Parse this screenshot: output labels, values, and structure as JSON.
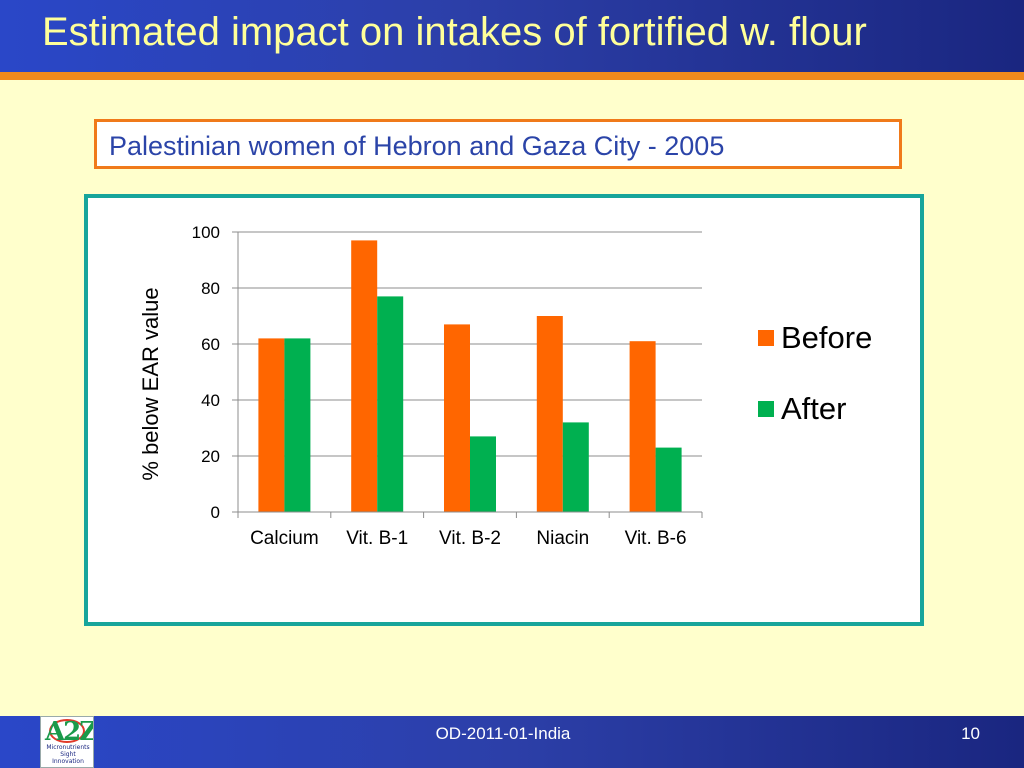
{
  "slide": {
    "title": "Estimated impact on intakes of fortified w. flour",
    "subtitle": "Palestinian women of Hebron and Gaza City -  2005",
    "footer_text": "OD-2011-01-India",
    "page_number": "10",
    "logo": {
      "mark": "A2Z",
      "lines": [
        "Micronutrients",
        "Sight",
        "Innovation"
      ]
    }
  },
  "colors": {
    "header": "#2C3FA8",
    "stripe": "#F08A1C",
    "title_text": "#FFFF99",
    "background": "#FFFFCC",
    "chart_border": "#17A59B",
    "before": "#FF6600",
    "after": "#00B050"
  },
  "chart_data": {
    "type": "bar",
    "categories": [
      "Calcium",
      "Vit. B-1",
      "Vit. B-2",
      "Niacin",
      "Vit. B-6"
    ],
    "series": [
      {
        "name": "Before",
        "values": [
          62,
          97,
          67,
          70,
          61
        ]
      },
      {
        "name": "After",
        "values": [
          62,
          77,
          27,
          32,
          23
        ]
      }
    ],
    "xlabel": "",
    "ylabel": "% below EAR value",
    "ylim": [
      0,
      100
    ],
    "yticks": [
      0,
      20,
      40,
      60,
      80,
      100
    ],
    "grid": true,
    "legend": "right"
  }
}
